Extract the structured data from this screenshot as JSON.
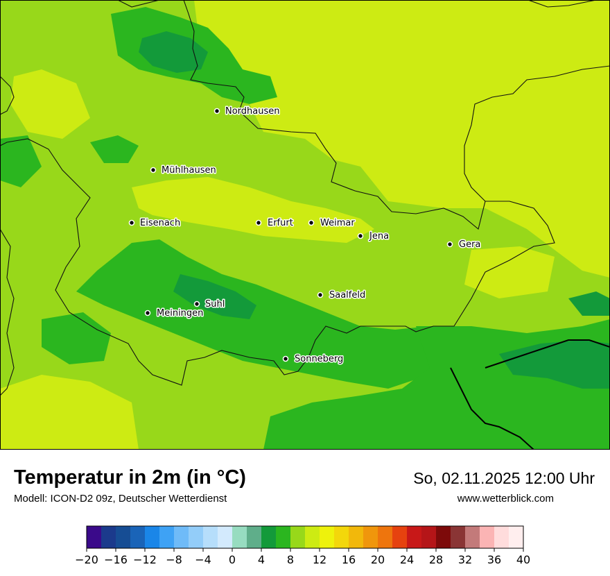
{
  "title": "Temperatur in 2m (in °C)",
  "model": "Modell: ICON-D2 09z, Deutscher Wetterdienst",
  "datetime": "So, 02.11.2025 12:00 Uhr",
  "source": "www.wetterblick.com",
  "cities": [
    {
      "name": "Nordhausen"
    },
    {
      "name": "Mühlhausen"
    },
    {
      "name": "Eisenach"
    },
    {
      "name": "Erfurt"
    },
    {
      "name": "Weimar"
    },
    {
      "name": "Jena"
    },
    {
      "name": "Gera"
    },
    {
      "name": "Saalfeld"
    },
    {
      "name": "Suhl"
    },
    {
      "name": "Meiningen"
    },
    {
      "name": "Sonneberg"
    }
  ],
  "legend": {
    "min": -20,
    "max": 40,
    "step": 2,
    "tick_labels": [
      "−20",
      "−16",
      "−12",
      "−8",
      "−4",
      "0",
      "4",
      "8",
      "12",
      "16",
      "20",
      "24",
      "28",
      "32",
      "36",
      "40"
    ],
    "colors": [
      "#3a0a8a",
      "#1b3a8c",
      "#164d94",
      "#1a64b8",
      "#1a86e8",
      "#3ea2f5",
      "#6fbbf8",
      "#93cdf9",
      "#b6defb",
      "#d3eafd",
      "#97dcc0",
      "#5fae8a",
      "#139a3a",
      "#2bb61f",
      "#98d81a",
      "#cdeb13",
      "#eef20c",
      "#f3d70b",
      "#f2b80b",
      "#f0960c",
      "#ee750d",
      "#e6420f",
      "#c81818",
      "#b51518",
      "#7d0a0a",
      "#8a3535",
      "#c37a7a",
      "#fbb4b4",
      "#ffdcdc",
      "#ffeeee"
    ]
  }
}
